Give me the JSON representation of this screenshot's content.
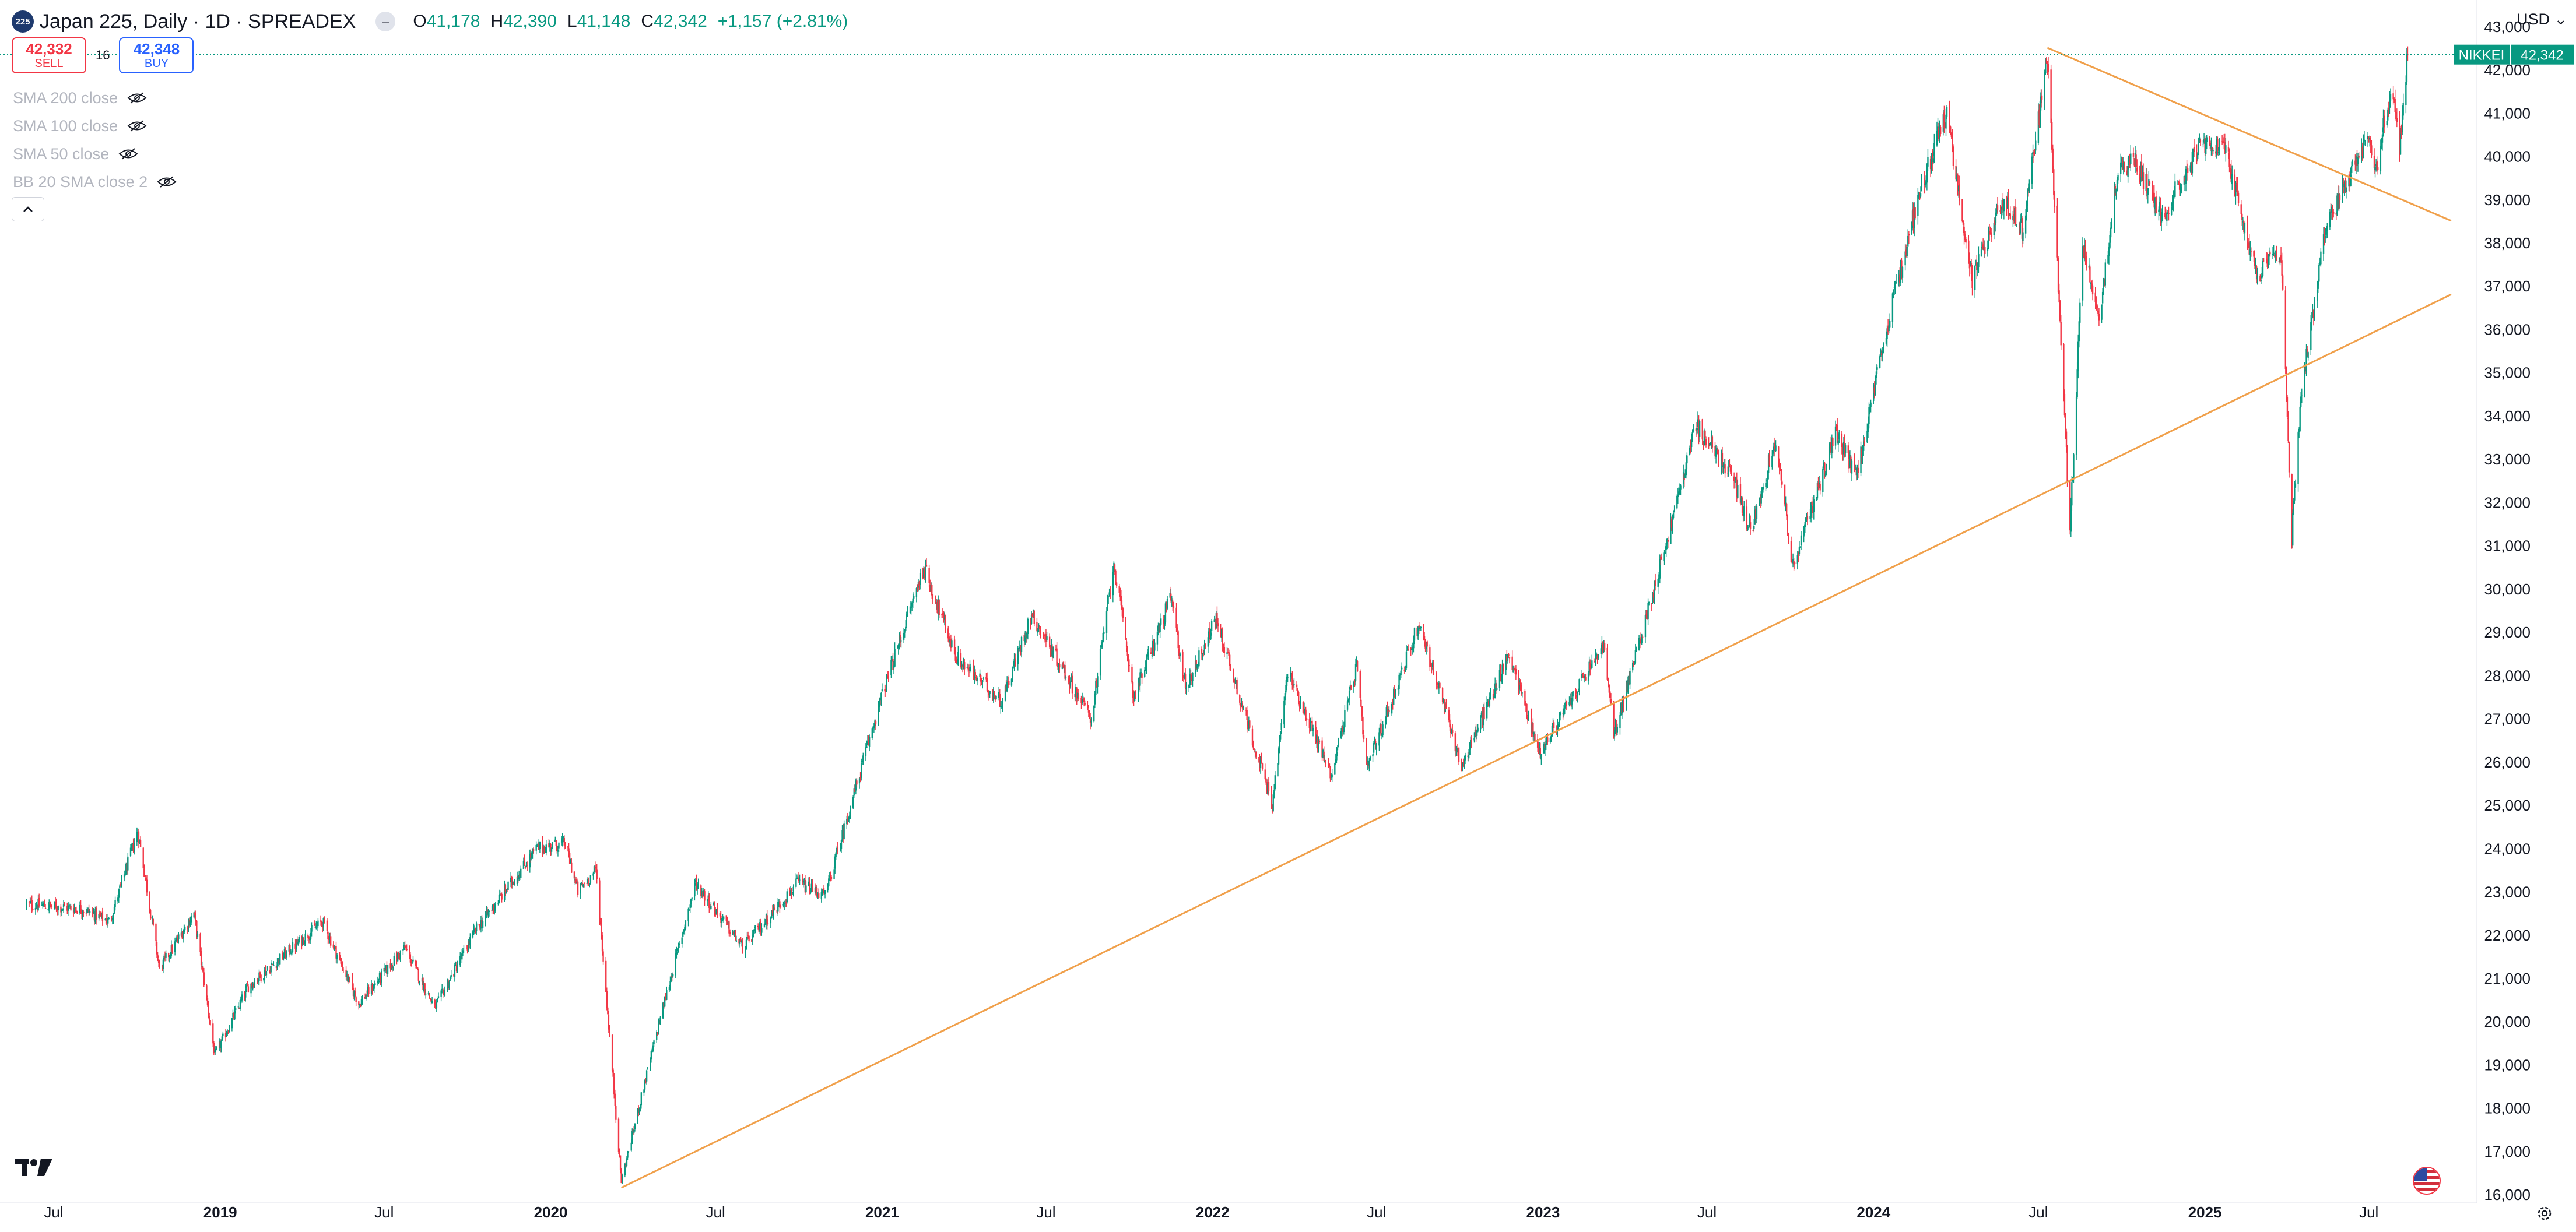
{
  "header": {
    "symbol_badge": "225",
    "title": "Japan 225, Daily · 1D · SPREADEX",
    "ohlc": [
      {
        "label": "O",
        "value": "41,178"
      },
      {
        "label": "H",
        "value": "42,390"
      },
      {
        "label": "L",
        "value": "41,148"
      },
      {
        "label": "C",
        "value": "42,342"
      }
    ],
    "change": "+1,157 (+2.81%)"
  },
  "trade": {
    "sell_price": "42,332",
    "sell_label": "SELL",
    "spread": "16",
    "buy_price": "42,348",
    "buy_label": "BUY"
  },
  "indicators": [
    "SMA 200 close",
    "SMA 100 close",
    "SMA 50 close",
    "BB 20 SMA close 2"
  ],
  "currency": "USD",
  "icons": [
    "eye-hidden-icon",
    "chevron-up-icon",
    "tradingview-logo-icon",
    "us-flag-icon",
    "settings-icon"
  ],
  "colors": {
    "up": "#089981",
    "down": "#f23645",
    "trendline": "#f0a04b",
    "label_bg": "#089981",
    "text": "#131722"
  },
  "chart_data": {
    "type": "candlestick",
    "title": "Japan 225, Daily · 1D · SPREADEX",
    "x_range": [
      "2018-07-01",
      "2025-09-30"
    ],
    "ylim": [
      15800,
      43200
    ],
    "y_ticks": [
      "16,000",
      "17,000",
      "18,000",
      "19,000",
      "20,000",
      "21,000",
      "22,000",
      "23,000",
      "24,000",
      "25,000",
      "26,000",
      "27,000",
      "28,000",
      "29,000",
      "30,000",
      "31,000",
      "32,000",
      "33,000",
      "34,000",
      "35,000",
      "36,000",
      "37,000",
      "38,000",
      "39,000",
      "40,000",
      "41,000",
      "42,000",
      "43,000"
    ],
    "x_ticks": [
      {
        "date": "2018-07-01",
        "label": "Jul",
        "bold": false
      },
      {
        "date": "2019-01-01",
        "label": "2019",
        "bold": true
      },
      {
        "date": "2019-07-01",
        "label": "Jul",
        "bold": false
      },
      {
        "date": "2020-01-01",
        "label": "2020",
        "bold": true
      },
      {
        "date": "2020-07-01",
        "label": "Jul",
        "bold": false
      },
      {
        "date": "2021-01-01",
        "label": "2021",
        "bold": true
      },
      {
        "date": "2021-07-01",
        "label": "Jul",
        "bold": false
      },
      {
        "date": "2022-01-01",
        "label": "2022",
        "bold": true
      },
      {
        "date": "2022-07-01",
        "label": "Jul",
        "bold": false
      },
      {
        "date": "2023-01-01",
        "label": "2023",
        "bold": true
      },
      {
        "date": "2023-07-01",
        "label": "Jul",
        "bold": false
      },
      {
        "date": "2024-01-01",
        "label": "2024",
        "bold": true
      },
      {
        "date": "2024-07-01",
        "label": "Jul",
        "bold": false
      },
      {
        "date": "2025-01-01",
        "label": "2025",
        "bold": true
      },
      {
        "date": "2025-07-01",
        "label": "Jul",
        "bold": false
      }
    ],
    "anchors": [
      [
        "2018-06-01",
        22700
      ],
      [
        "2018-08-01",
        22600
      ],
      [
        "2018-09-01",
        22300
      ],
      [
        "2018-10-02",
        24400
      ],
      [
        "2018-10-26",
        21200
      ],
      [
        "2018-12-03",
        22500
      ],
      [
        "2018-12-26",
        19200
      ],
      [
        "2019-02-01",
        20800
      ],
      [
        "2019-04-24",
        22300
      ],
      [
        "2019-06-03",
        20400
      ],
      [
        "2019-07-24",
        21700
      ],
      [
        "2019-08-26",
        20300
      ],
      [
        "2019-10-10",
        22100
      ],
      [
        "2019-12-17",
        24000
      ],
      [
        "2020-01-17",
        24100
      ],
      [
        "2020-01-31",
        23000
      ],
      [
        "2020-02-20",
        23500
      ],
      [
        "2020-03-19",
        16300
      ],
      [
        "2020-04-30",
        20000
      ],
      [
        "2020-06-09",
        23200
      ],
      [
        "2020-07-31",
        21700
      ],
      [
        "2020-09-30",
        23200
      ],
      [
        "2020-10-30",
        22900
      ],
      [
        "2020-12-30",
        27400
      ],
      [
        "2021-02-16",
        30500
      ],
      [
        "2021-03-24",
        28400
      ],
      [
        "2021-05-13",
        27400
      ],
      [
        "2021-06-15",
        29400
      ],
      [
        "2021-08-20",
        27000
      ],
      [
        "2021-09-14",
        30600
      ],
      [
        "2021-10-06",
        27500
      ],
      [
        "2021-11-16",
        29800
      ],
      [
        "2021-12-02",
        27700
      ],
      [
        "2022-01-05",
        29300
      ],
      [
        "2022-03-08",
        25000
      ],
      [
        "2022-03-25",
        28100
      ],
      [
        "2022-05-12",
        25700
      ],
      [
        "2022-06-09",
        28200
      ],
      [
        "2022-06-20",
        25800
      ],
      [
        "2022-08-17",
        29200
      ],
      [
        "2022-10-03",
        25900
      ],
      [
        "2022-11-25",
        28500
      ],
      [
        "2022-12-28",
        26200
      ],
      [
        "2023-03-09",
        28700
      ],
      [
        "2023-03-20",
        26600
      ],
      [
        "2023-05-19",
        31200
      ],
      [
        "2023-06-19",
        33800
      ],
      [
        "2023-07-31",
        32500
      ],
      [
        "2023-08-18",
        31300
      ],
      [
        "2023-09-15",
        33500
      ],
      [
        "2023-10-04",
        30500
      ],
      [
        "2023-11-20",
        33600
      ],
      [
        "2023-12-13",
        32600
      ],
      [
        "2024-01-22",
        36600
      ],
      [
        "2024-02-22",
        39300
      ],
      [
        "2024-03-22",
        41000
      ],
      [
        "2024-04-19",
        37100
      ],
      [
        "2024-05-21",
        39000
      ],
      [
        "2024-06-14",
        38300
      ],
      [
        "2024-07-11",
        42300
      ],
      [
        "2024-08-05",
        31300
      ],
      [
        "2024-08-19",
        38000
      ],
      [
        "2024-09-06",
        36300
      ],
      [
        "2024-09-27",
        39700
      ],
      [
        "2024-10-15",
        39900
      ],
      [
        "2024-11-15",
        38600
      ],
      [
        "2024-12-27",
        40300
      ],
      [
        "2025-01-24",
        40100
      ],
      [
        "2025-02-28",
        37200
      ],
      [
        "2025-03-26",
        37800
      ],
      [
        "2025-04-07",
        31200
      ],
      [
        "2025-04-17",
        34500
      ],
      [
        "2025-05-13",
        38200
      ],
      [
        "2025-06-30",
        40500
      ],
      [
        "2025-07-08",
        39600
      ],
      [
        "2025-07-25",
        41500
      ],
      [
        "2025-08-04",
        40300
      ],
      [
        "2025-08-13",
        42342
      ]
    ],
    "trendlines": [
      {
        "from": [
          "2020-03-19",
          16150
        ],
        "to": [
          "2025-09-30",
          36800
        ]
      },
      {
        "from": [
          "2024-07-11",
          42500
        ],
        "to": [
          "2025-09-30",
          38500
        ]
      }
    ],
    "last_price": {
      "label": "NIKKEI",
      "value": "42,342",
      "raw": 42342
    }
  }
}
